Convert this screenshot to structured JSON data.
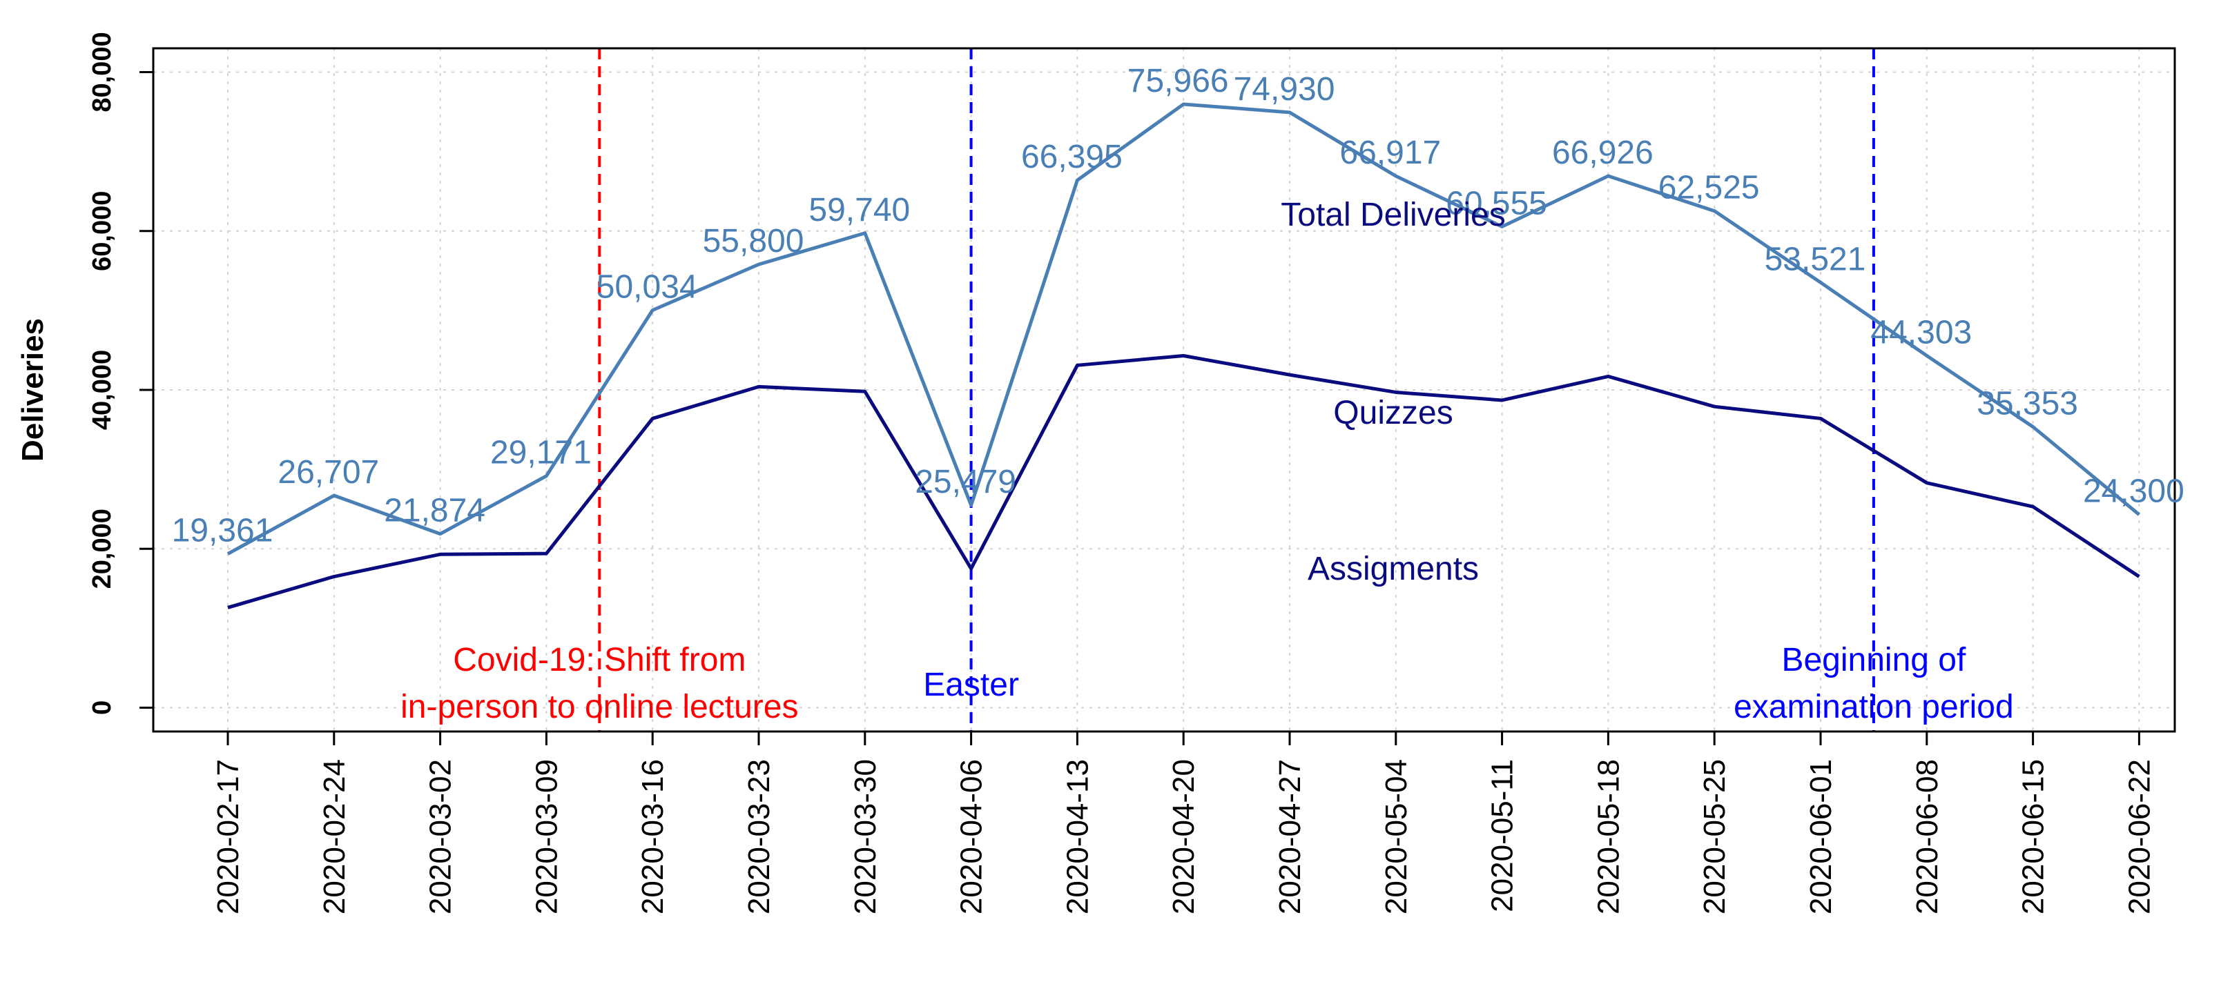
{
  "chart_data": {
    "type": "line",
    "title": "",
    "xlabel": "",
    "ylabel": "Deliveries",
    "ylim": [
      -3000,
      83000
    ],
    "yticks": [
      0,
      20000,
      40000,
      60000,
      80000
    ],
    "ytick_labels": [
      "0",
      "20,000",
      "40,000",
      "60,000",
      "80,000"
    ],
    "grid": true,
    "categories": [
      "2020-02-17",
      "2020-02-24",
      "2020-03-02",
      "2020-03-09",
      "2020-03-16",
      "2020-03-23",
      "2020-03-30",
      "2020-04-06",
      "2020-04-13",
      "2020-04-20",
      "2020-04-27",
      "2020-05-04",
      "2020-05-11",
      "2020-05-18",
      "2020-05-25",
      "2020-06-01",
      "2020-06-08",
      "2020-06-15",
      "2020-06-22"
    ],
    "series": [
      {
        "name": "Total Deliveries",
        "color": "#4a7fb5",
        "values": [
          19361,
          26707,
          21874,
          29171,
          50034,
          55800,
          59740,
          25479,
          66395,
          75966,
          74930,
          66917,
          60555,
          66926,
          62525,
          53521,
          44303,
          35353,
          24300
        ],
        "labels": [
          "19,361",
          "26,707",
          "21,874",
          "29,171",
          "50,034",
          "55,800",
          "59,740",
          "25,479",
          "66,395",
          "75,966",
          "74,930",
          "66,917",
          "60,555",
          "66,926",
          "62,525",
          "53,521",
          "44,303",
          "35,353",
          "24,300"
        ]
      },
      {
        "name": "Assigments",
        "color": "#0b0b80",
        "values": [
          12600,
          16500,
          19300,
          19400,
          36400,
          40400,
          39800,
          17500,
          43100,
          44300,
          41900,
          39700,
          38700,
          41700,
          37900,
          36400,
          28300,
          25300,
          16500
        ]
      }
    ],
    "series_labels": {
      "total": "Total Deliveries",
      "quizzes": "Quizzes",
      "assignments": "Assigments"
    },
    "events": [
      {
        "position": 3.5,
        "color": "#ff0000",
        "lines": [
          "Covid-19: Shift from",
          "in-person to online lectures"
        ]
      },
      {
        "position": 7,
        "color": "#0000ff",
        "lines": [
          "Easter"
        ]
      },
      {
        "position": 15.5,
        "color": "#0000ff",
        "lines": [
          "Beginning of",
          "examination period"
        ]
      }
    ]
  }
}
